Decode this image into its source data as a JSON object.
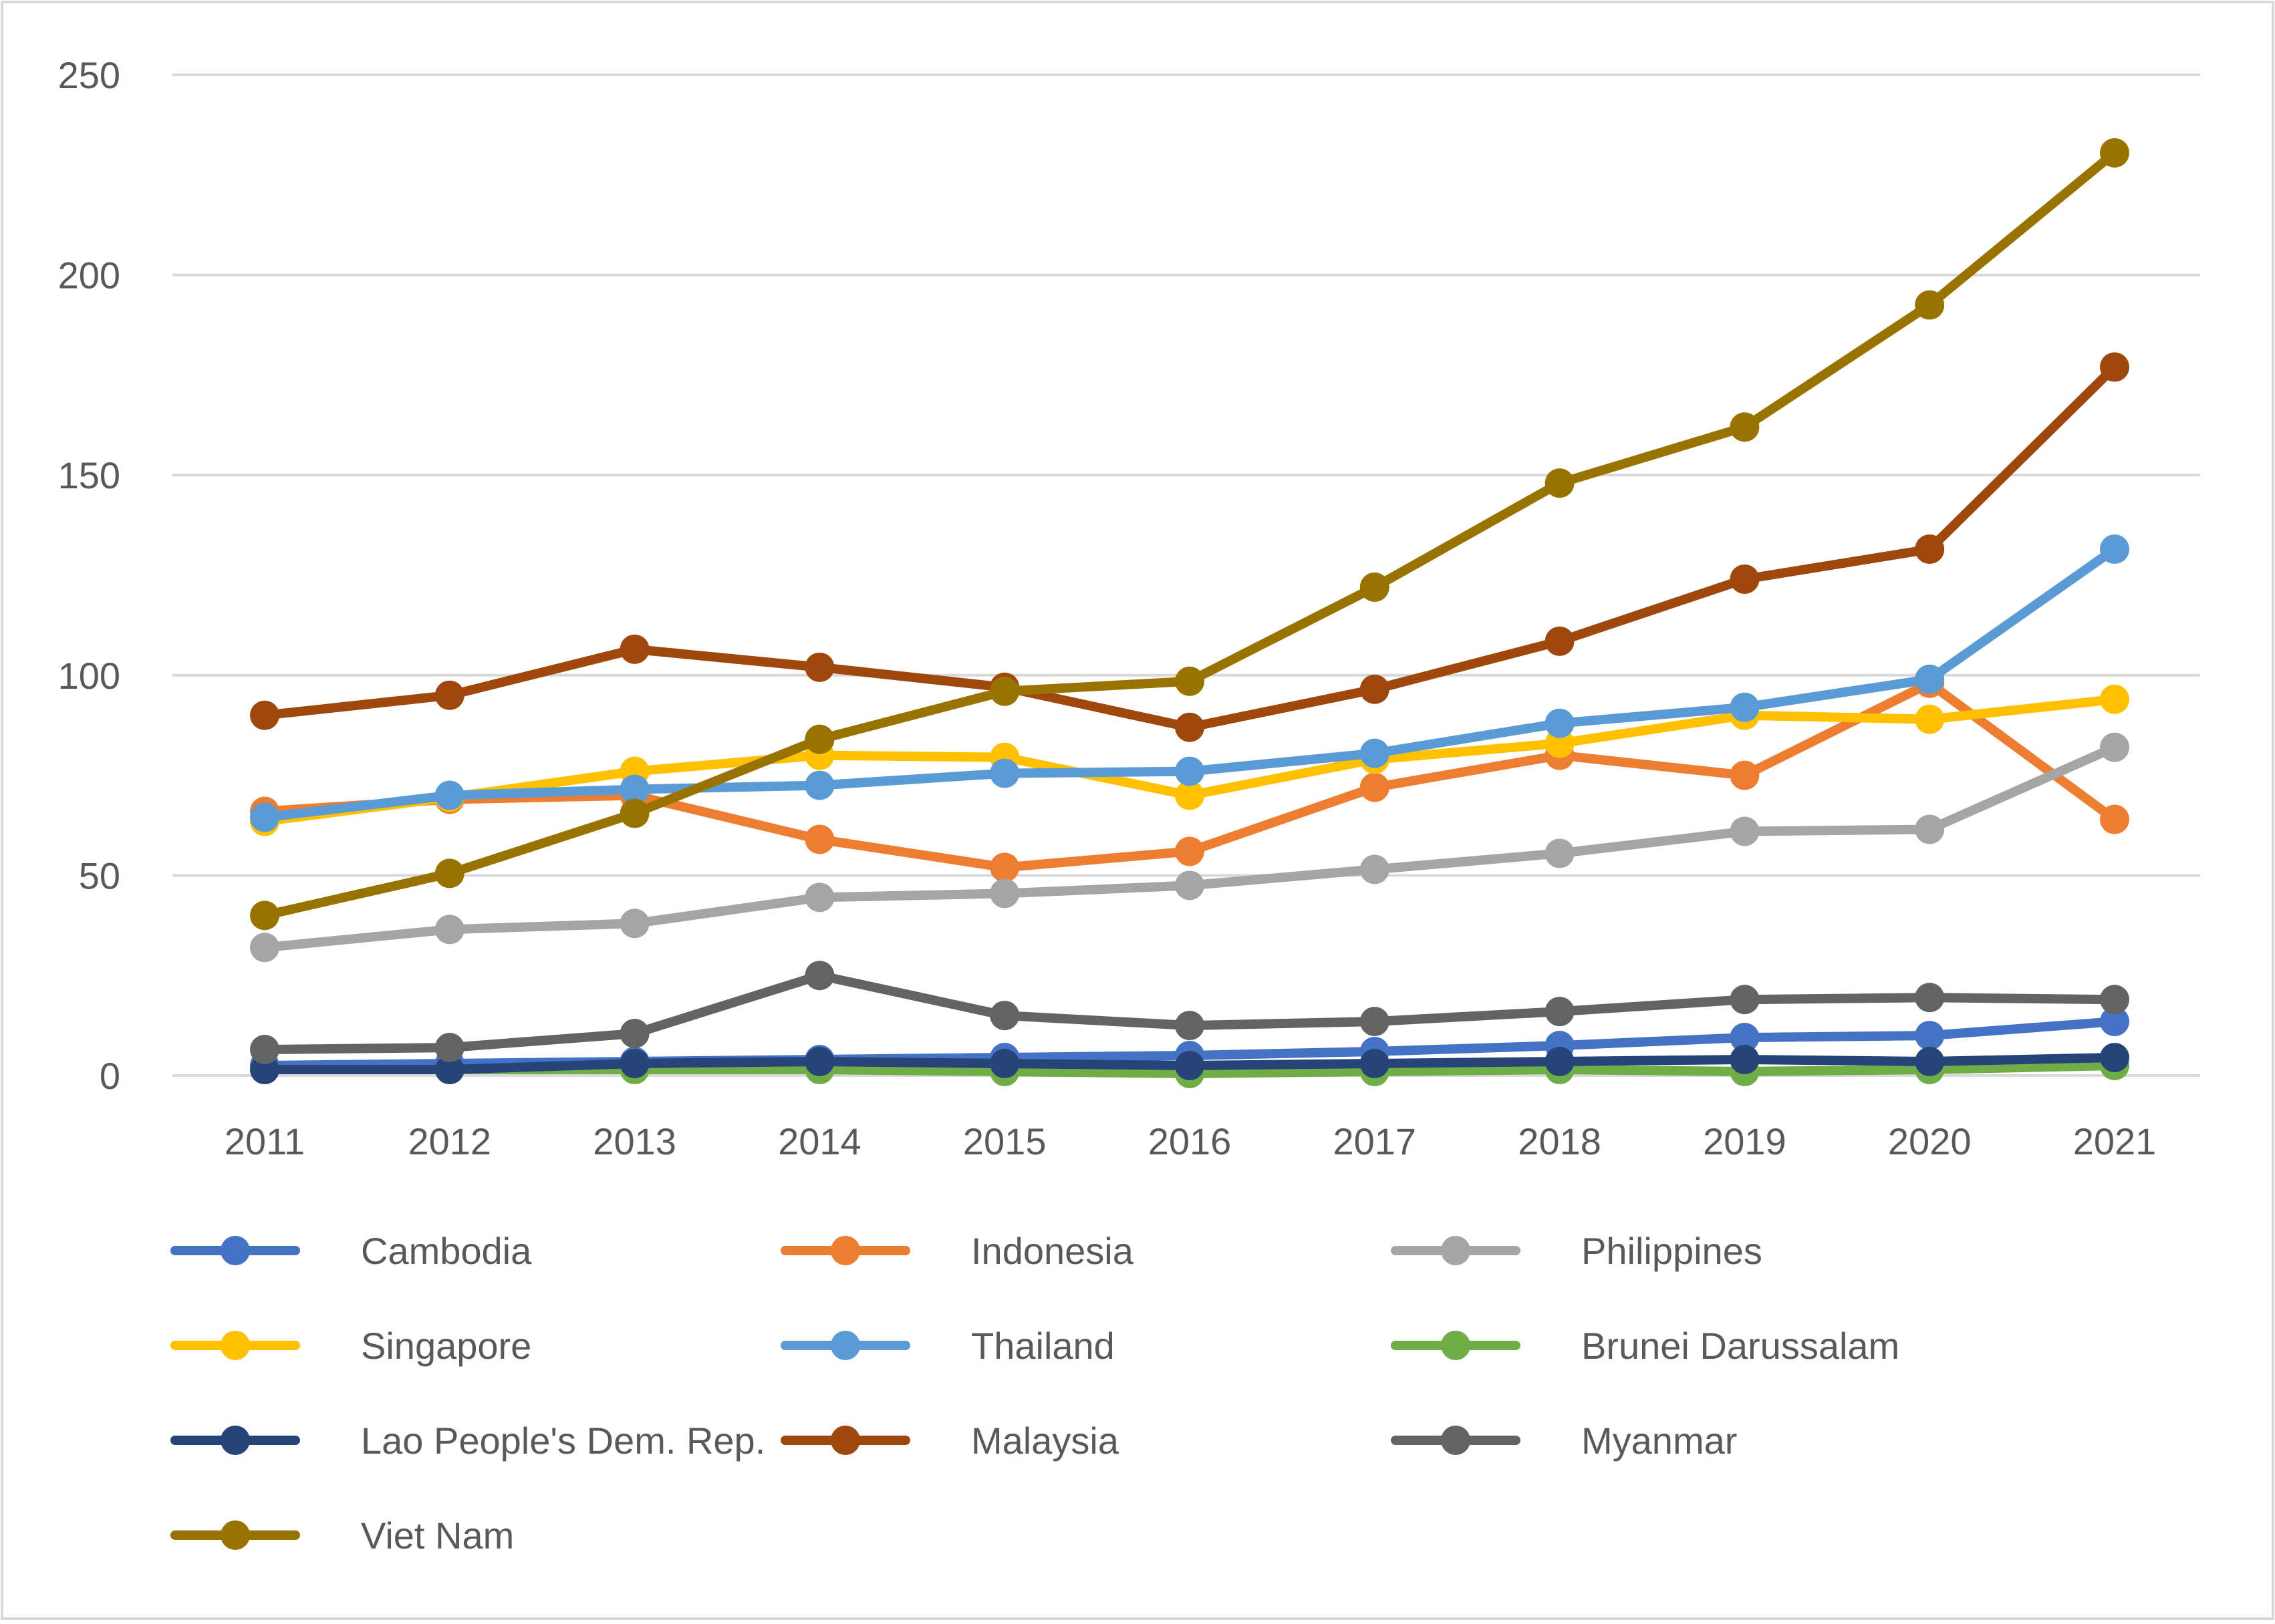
{
  "chart_data": {
    "type": "line",
    "title": "",
    "xlabel": "",
    "ylabel": "",
    "ylim": [
      0,
      250
    ],
    "yticks": [
      0,
      50,
      100,
      150,
      200,
      250
    ],
    "grid": true,
    "legend_position": "bottom",
    "categories": [
      "2011",
      "2012",
      "2013",
      "2014",
      "2015",
      "2016",
      "2017",
      "2018",
      "2019",
      "2020",
      "2021"
    ],
    "series": [
      {
        "name": "Cambodia",
        "color": "#4472C4",
        "values": [
          2.5,
          3,
          3.5,
          4,
          4.5,
          5,
          6,
          7.5,
          9.5,
          10,
          13.5
        ]
      },
      {
        "name": "Indonesia",
        "color": "#ED7D31",
        "values": [
          66,
          69,
          70,
          59,
          52,
          56,
          72,
          80,
          75,
          98,
          64
        ]
      },
      {
        "name": "Philippines",
        "color": "#A5A5A5",
        "values": [
          32,
          36.5,
          38,
          44.5,
          45.5,
          47.5,
          51.5,
          55.5,
          61,
          61.5,
          82
        ]
      },
      {
        "name": "Singapore",
        "color": "#FFC000",
        "values": [
          63.5,
          69.5,
          76,
          80,
          79.5,
          70,
          79,
          83,
          90,
          89,
          94
        ]
      },
      {
        "name": "Thailand",
        "color": "#5B9BD5",
        "values": [
          64.5,
          70,
          71.5,
          72.5,
          75.5,
          76,
          80.5,
          88,
          92,
          99,
          131.5
        ]
      },
      {
        "name": "Brunei Darussalam",
        "color": "#70AD47",
        "values": [
          1.5,
          1.5,
          1.5,
          1.5,
          1,
          0.5,
          1,
          1.5,
          1,
          1.5,
          2.5
        ]
      },
      {
        "name": "Lao People's Dem. Rep.",
        "color": "#264478",
        "values": [
          1.5,
          1.5,
          3,
          3.5,
          3,
          2.5,
          3,
          3.5,
          4,
          3.5,
          4.5
        ]
      },
      {
        "name": "Malaysia",
        "color": "#9E480E",
        "values": [
          90,
          95,
          106.5,
          102,
          97,
          87,
          96.5,
          108.5,
          124,
          131.5,
          177
        ]
      },
      {
        "name": "Myanmar",
        "color": "#636363",
        "values": [
          6.5,
          7,
          10.5,
          25,
          15,
          12.5,
          13.5,
          16,
          19,
          19.5,
          19
        ]
      },
      {
        "name": "Viet Nam",
        "color": "#997300",
        "values": [
          40,
          50.5,
          65.5,
          84,
          96,
          98.5,
          122,
          148,
          162,
          192.5,
          230.5
        ]
      }
    ]
  }
}
